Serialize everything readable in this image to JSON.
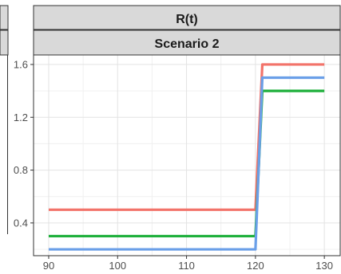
{
  "chart_data": {
    "type": "line",
    "strip_top": "R(t)",
    "strip_sub": "Scenario 2",
    "xlim": [
      87.8,
      132.3
    ],
    "ylim": [
      0.152,
      1.672
    ],
    "x_ticks": [
      90,
      100,
      110,
      120,
      130
    ],
    "y_ticks": [
      0.4,
      0.8,
      1.2,
      1.6
    ],
    "grid": true,
    "legend": "none",
    "series": [
      {
        "color": "#F2736A",
        "points": [
          [
            90,
            0.5
          ],
          [
            120,
            0.5
          ],
          [
            121,
            1.6
          ],
          [
            130,
            1.6
          ]
        ]
      },
      {
        "color": "#1FB03C",
        "points": [
          [
            90,
            0.3
          ],
          [
            120,
            0.3
          ],
          [
            121,
            1.4
          ],
          [
            130,
            1.4
          ]
        ]
      },
      {
        "color": "#6A9FE8",
        "points": [
          [
            90,
            0.2
          ],
          [
            120,
            0.2
          ],
          [
            121,
            1.5
          ],
          [
            130,
            1.5
          ]
        ]
      }
    ]
  }
}
